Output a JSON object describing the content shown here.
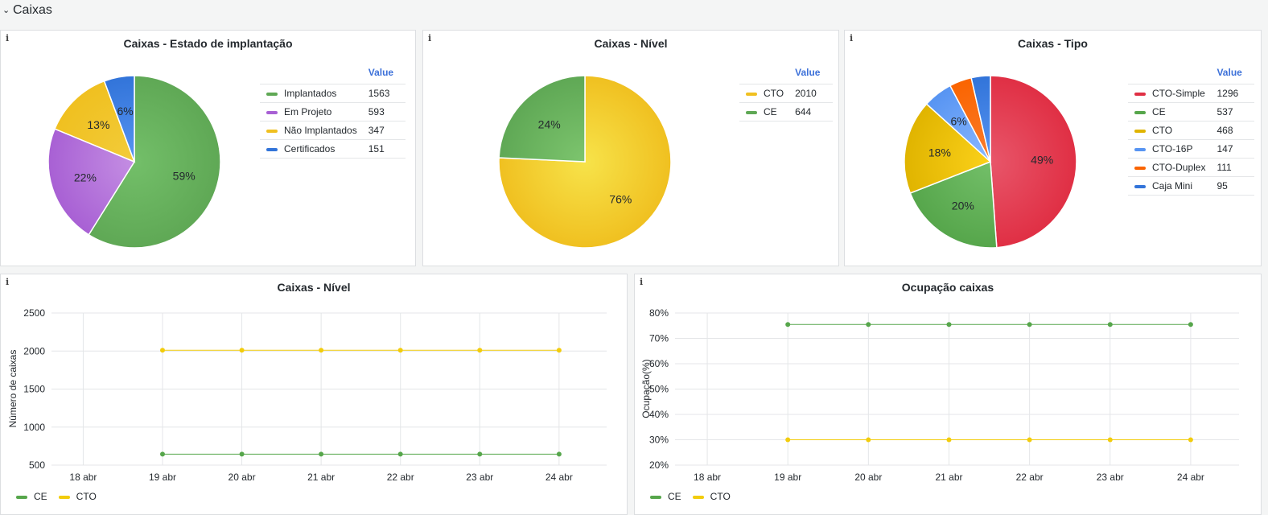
{
  "row": {
    "title": "Caixas",
    "chevron_icon": "chevron-down-icon"
  },
  "info_glyph": "i",
  "chart_data": [
    {
      "id": "p1",
      "type": "pie",
      "title": "Caixas - Estado de implantação",
      "legend_header": "Value",
      "slices": [
        {
          "name": "Implantados",
          "value": 1563,
          "label": "59%",
          "color": "#73bf69",
          "color2": "#5fa855"
        },
        {
          "name": "Em Projeto",
          "value": 593,
          "label": "22%",
          "color": "#c48ee3",
          "color2": "#a860d4"
        },
        {
          "name": "Não Implantados",
          "value": 347,
          "label": "13%",
          "color": "#f2cc3a",
          "color2": "#f0c020"
        },
        {
          "name": "Certificados",
          "value": 151,
          "label": "6%",
          "color": "#5794f2",
          "color2": "#3274d9"
        }
      ]
    },
    {
      "id": "p2",
      "type": "pie",
      "title": "Caixas - Nível",
      "legend_header": "Value",
      "slices": [
        {
          "name": "CTO",
          "value": 2010,
          "label": "76%",
          "color": "#f7e34a",
          "color2": "#f0c020"
        },
        {
          "name": "CE",
          "value": 644,
          "label": "24%",
          "color": "#7dc56e",
          "color2": "#5fa855"
        }
      ]
    },
    {
      "id": "p3",
      "type": "pie",
      "title": "Caixas - Tipo",
      "legend_header": "Value",
      "slices": [
        {
          "name": "CTO-Simple",
          "value": 1296,
          "label": "49%",
          "color": "#e8566a",
          "color2": "#e02f44"
        },
        {
          "name": "CE",
          "value": 537,
          "label": "20%",
          "color": "#73bf69",
          "color2": "#56a64b"
        },
        {
          "name": "CTO",
          "value": 468,
          "label": "18%",
          "color": "#fbd11a",
          "color2": "#e0b400"
        },
        {
          "name": "CTO-16P",
          "value": 147,
          "label": "6%",
          "color": "#8ab8ff",
          "color2": "#5794f2"
        },
        {
          "name": "CTO-Duplex",
          "value": 111,
          "label": "",
          "color": "#fa7c2c",
          "color2": "#fa6400"
        },
        {
          "name": "Caja Mini",
          "value": 95,
          "label": "",
          "color": "#5794f2",
          "color2": "#3274d9"
        }
      ]
    },
    {
      "id": "l1",
      "type": "line",
      "title": "Caixas - Nível",
      "ylabel": "Número de caixas",
      "x": [
        "18 abr",
        "19 abr",
        "20 abr",
        "21 abr",
        "22 abr",
        "23 abr",
        "24 abr"
      ],
      "yticks": [
        500,
        1000,
        1500,
        2000,
        2500
      ],
      "ylim": [
        500,
        2500
      ],
      "series": [
        {
          "name": "CE",
          "color": "#56a64b",
          "values": [
            null,
            644,
            644,
            644,
            644,
            644,
            644
          ]
        },
        {
          "name": "CTO",
          "color": "#f2cc0c",
          "values": [
            null,
            2010,
            2010,
            2010,
            2010,
            2010,
            2010
          ]
        }
      ]
    },
    {
      "id": "l2",
      "type": "line",
      "title": "Ocupação caixas",
      "ylabel": "Ocupação(%)",
      "x": [
        "18 abr",
        "19 abr",
        "20 abr",
        "21 abr",
        "22 abr",
        "23 abr",
        "24 abr"
      ],
      "yticks": [
        "20%",
        "30%",
        "40%",
        "50%",
        "60%",
        "70%",
        "80%"
      ],
      "ylim": [
        20,
        80
      ],
      "series": [
        {
          "name": "CE",
          "color": "#56a64b",
          "values": [
            null,
            75.5,
            75.5,
            75.5,
            75.5,
            75.5,
            75.5
          ]
        },
        {
          "name": "CTO",
          "color": "#f2cc0c",
          "values": [
            null,
            30,
            30,
            30,
            30,
            30,
            30
          ]
        }
      ]
    }
  ]
}
